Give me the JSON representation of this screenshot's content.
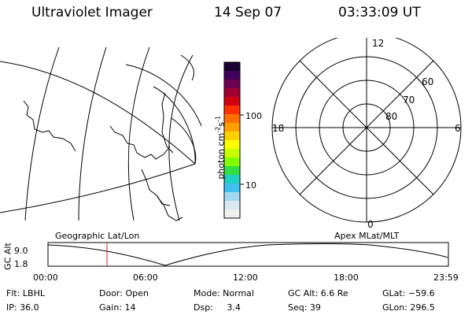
{
  "header": {
    "instrument": "Ultraviolet Imager",
    "date": "14 Sep 07",
    "time": "03:33:09 UT"
  },
  "colorbar": {
    "unit": "photon cm",
    "unit_exp1": "-2",
    "unit_s": "s",
    "unit_exp2": "-1",
    "tick_100": "100",
    "tick_10": "10",
    "colors": [
      "#1a0030",
      "#40005a",
      "#700050",
      "#a00030",
      "#d00010",
      "#ff3000",
      "#ff7000",
      "#ffa000",
      "#ffd000",
      "#ffff00",
      "#c8ff00",
      "#80ff00",
      "#30e040",
      "#20d0c0",
      "#40c0f0",
      "#a0d8f0",
      "#d8e8f0",
      "#f0f0f0"
    ]
  },
  "polar": {
    "mlt_top": "12",
    "mlt_bottom": "0",
    "mlt_left": "18",
    "mlt_right": "6",
    "lat_60": "60",
    "lat_70": "70",
    "lat_80": "80"
  },
  "timeline": {
    "left_title": "Geographic Lat/Lon",
    "right_title": "Apex MLat/MLT",
    "y_label": "GC Alt",
    "y_max": "9.0",
    "y_min": "1.8",
    "x_ticks": [
      "00:00",
      "06:00",
      "12:00",
      "18:00",
      "23:59"
    ],
    "marker_color": "#cc2222"
  },
  "status": {
    "flt": "Flt: LBHL",
    "ip": "IP: 36.0",
    "door": "Door: Open",
    "gain": "Gain: 14",
    "mode": "Mode: Normal",
    "dsp": "Dsp:     3.4",
    "gcalt": "GC Alt: 6.6 Re",
    "seq": "Seq: 39",
    "glat": "GLat: −59.6",
    "glon": "GLon: 296.5"
  }
}
